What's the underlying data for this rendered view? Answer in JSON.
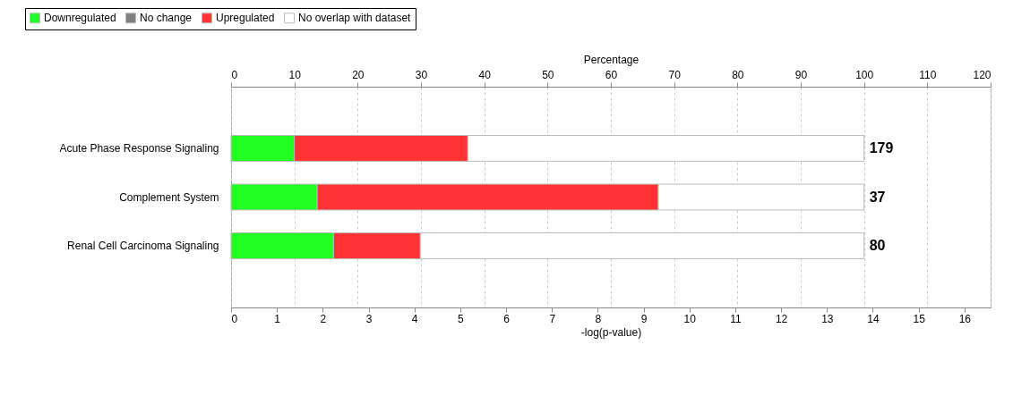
{
  "chart_data": {
    "type": "bar",
    "orientation": "horizontal",
    "stacked": true,
    "categories": [
      "Acute Phase Response Signaling",
      "Complement System",
      "Renal Cell Carcinoma Signaling"
    ],
    "series": [
      {
        "name": "Downregulated",
        "color": "#22ff22",
        "values": [
          10.0,
          13.6,
          16.2
        ]
      },
      {
        "name": "No change",
        "color": "#808080",
        "values": [
          0,
          0,
          0
        ]
      },
      {
        "name": "Upregulated",
        "color": "#ff3333",
        "values": [
          27.4,
          53.9,
          13.7
        ]
      },
      {
        "name": "No overlap with dataset",
        "color": "#ffffff",
        "values": [
          62.6,
          32.5,
          70.1
        ]
      }
    ],
    "annotations": [
      "179",
      "37",
      "80"
    ],
    "xlabel": "Percentage",
    "xlim": [
      0,
      120
    ],
    "xticks": [
      0,
      10,
      20,
      30,
      40,
      50,
      60,
      70,
      80,
      90,
      100,
      110,
      120
    ],
    "x2label": "-log(p-value)",
    "x2lim": [
      0,
      16.57
    ],
    "x2ticks": [
      0,
      1,
      2,
      3,
      4,
      5,
      6,
      7,
      8,
      9,
      10,
      11,
      12,
      13,
      14,
      15,
      16
    ],
    "grid": "x",
    "legend": "top left"
  }
}
